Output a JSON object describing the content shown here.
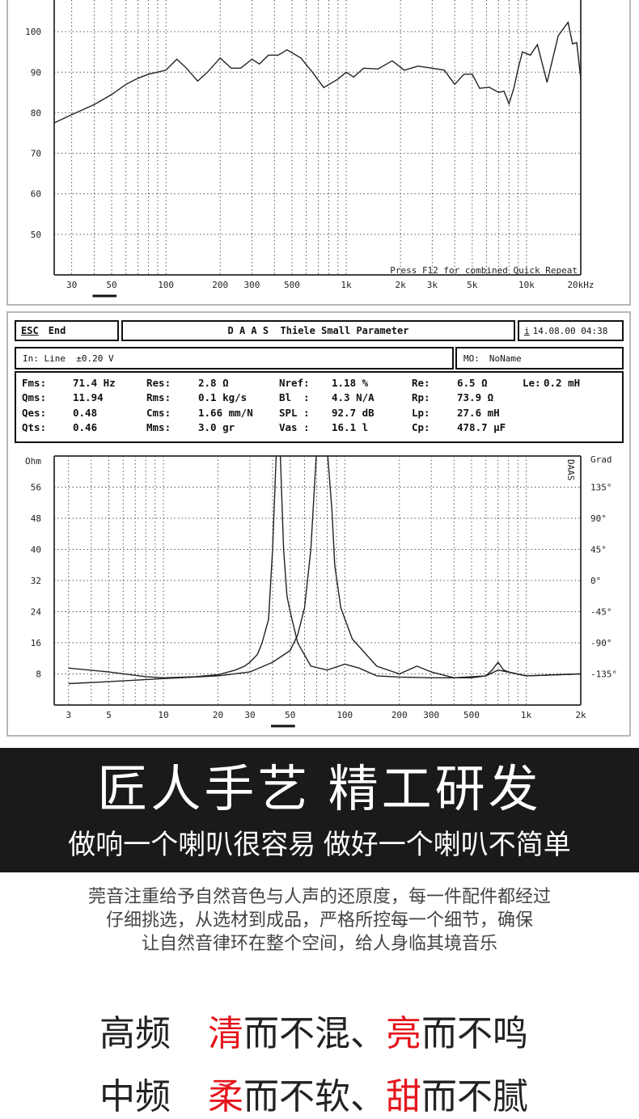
{
  "chart_data": [
    {
      "type": "line",
      "title": "",
      "xlabel": "",
      "ylabel": "",
      "xscale": "log",
      "xlim": [
        24,
        20000
      ],
      "ylim": [
        40,
        109
      ],
      "grid": true,
      "x_ticks": [
        30,
        50,
        100,
        200,
        300,
        500,
        1000,
        2000,
        3000,
        5000,
        10000,
        20000
      ],
      "x_tick_labels": [
        "30",
        "50",
        "100",
        "200",
        "300",
        "500",
        "1k",
        "2k",
        "3k",
        "5k",
        "10k",
        "20kHz"
      ],
      "y_ticks": [
        50,
        60,
        70,
        80,
        90,
        100
      ],
      "y_tick_labels": [
        "50",
        "60",
        "70",
        "80",
        "90",
        "100"
      ],
      "annotation": "Press F12 for combined Quick Repeat",
      "series": [
        {
          "x": [
            24,
            30,
            40,
            50,
            60,
            70,
            80,
            100,
            115,
            130,
            150,
            170,
            200,
            230,
            260,
            300,
            330,
            370,
            420,
            470,
            560,
            650,
            750,
            900,
            1000,
            1100,
            1250,
            1500,
            1800,
            2100,
            2500,
            3000,
            3500,
            4000,
            4500,
            5000,
            5500,
            6200,
            7000,
            7500,
            8000,
            8500,
            9000,
            9500,
            10500,
            11500,
            13000,
            15000,
            17000,
            18000,
            19000,
            20000
          ],
          "y": [
            77.5,
            79.5,
            82,
            84.5,
            87,
            88.5,
            89.5,
            90.5,
            93.2,
            91,
            87.8,
            90,
            93.5,
            91,
            91,
            93.2,
            92,
            94.2,
            94.2,
            95.5,
            93.5,
            90,
            86.2,
            88.3,
            90,
            88.8,
            91,
            90.8,
            92.8,
            90.5,
            91.5,
            91,
            90.5,
            87,
            89.5,
            89.5,
            86,
            86.3,
            85,
            85.3,
            82.2,
            86,
            91,
            95,
            94.2,
            96.8,
            87.5,
            99,
            102.3,
            97,
            97.3,
            88.5
          ]
        }
      ]
    },
    {
      "type": "line",
      "title": "",
      "xscale": "log",
      "xlim": [
        2.5,
        2000
      ],
      "ylim": [
        0,
        64
      ],
      "grid": true,
      "ylabel_left": "Ohm",
      "ylabel_right": "Grad",
      "x_ticks": [
        3,
        5,
        10,
        20,
        30,
        50,
        100,
        200,
        300,
        500,
        1000,
        2000
      ],
      "x_tick_labels": [
        "3",
        "5",
        "10",
        "20",
        "30",
        "50",
        "100",
        "200",
        "300",
        "500",
        "1k",
        "2k"
      ],
      "y_ticks": [
        8,
        16,
        24,
        32,
        40,
        48,
        56
      ],
      "y_tick_labels": [
        "8",
        "16",
        "24",
        "32",
        "40",
        "48",
        "56"
      ],
      "y2_tick_labels": [
        "-135°",
        "-90°",
        "-45°",
        "0°",
        "45°",
        "90°",
        "135°"
      ],
      "watermark": "DAAS",
      "series": [
        {
          "x": [
            3,
            5,
            8,
            10,
            15,
            20,
            25,
            28,
            30,
            33,
            35,
            38,
            40,
            42,
            44,
            46,
            48,
            50,
            55,
            65,
            80,
            100,
            120,
            150,
            200,
            300,
            500,
            600,
            650,
            700,
            750,
            800,
            1000,
            2000
          ],
          "y": [
            9.5,
            8.5,
            7.3,
            7,
            7.3,
            7.8,
            9,
            10,
            11,
            13,
            16,
            22,
            40,
            66,
            66,
            40,
            28,
            24,
            16,
            10,
            9,
            10.5,
            9.5,
            7.5,
            7.2,
            7,
            7,
            7.5,
            9,
            11,
            9,
            8.5,
            7.5,
            8
          ]
        },
        {
          "x": [
            3,
            5,
            10,
            20,
            30,
            40,
            50,
            55,
            60,
            65,
            70,
            80,
            85,
            88,
            95,
            110,
            150,
            200,
            250,
            300,
            400,
            600,
            700,
            1000,
            2000
          ],
          "y": [
            5.5,
            6,
            6.8,
            7.5,
            8.5,
            11,
            14,
            18,
            25,
            40,
            66,
            66,
            50,
            36,
            25,
            17,
            10,
            8,
            10,
            8.5,
            7,
            7.5,
            9,
            7.5,
            8
          ]
        }
      ]
    }
  ],
  "daas": {
    "esc_label": "ESC",
    "end_label": "End",
    "title": "D A A S  Thiele Small Parameter",
    "info_icon": "i",
    "datetime": "14.08.00 04:38",
    "input": "In: Line  ±0.20 V",
    "mo_label": "MO:",
    "mo_value": "NoName",
    "params": [
      {
        "label": "Fms:",
        "value": "71.4 Hz"
      },
      {
        "label": "Res:",
        "value": "2.8 Ω"
      },
      {
        "label": "Nref:",
        "value": "1.18 %"
      },
      {
        "label": "Re:",
        "value": "6.5 Ω"
      },
      {
        "label": "Le:",
        "value": "0.2 mH"
      },
      {
        "label": "Qms:",
        "value": "11.94"
      },
      {
        "label": "Rms:",
        "value": "0.1 kg/s"
      },
      {
        "label": "Bl  :",
        "value": "4.3 N/A"
      },
      {
        "label": "Rp:",
        "value": "73.9 Ω"
      },
      {
        "label": "Qes:",
        "value": "0.48"
      },
      {
        "label": "Cms:",
        "value": "1.66 mm/N"
      },
      {
        "label": "SPL :",
        "value": "92.7 dB"
      },
      {
        "label": "Lp:",
        "value": "27.6 mH"
      },
      {
        "label": "Qts:",
        "value": "0.46"
      },
      {
        "label": "Mms:",
        "value": "3.0 gr"
      },
      {
        "label": "Vas :",
        "value": "16.1 l"
      },
      {
        "label": "Cp:",
        "value": "478.7 µF"
      }
    ]
  },
  "banner": {
    "title": "匠人手艺 精工研发",
    "subtitle": "做响一个喇叭很容易  做好一个喇叭不简单",
    "background": "#1a1a1a"
  },
  "description": [
    "莞音注重给予自然音色与人声的还原度，每一件配件都经过",
    "仔细挑选，从选材到成品，严格所控每一个细节，确保",
    "让自然音律环在整个空间，给人身临其境音乐"
  ],
  "slogans": [
    {
      "label": "高频",
      "a_red": "清",
      "a_rest": "而不混、",
      "b_red": "亮",
      "b_rest": "而不鸣"
    },
    {
      "label": "中频",
      "a_red": "柔",
      "a_rest": "而不软、",
      "b_red": "甜",
      "b_rest": "而不腻"
    }
  ],
  "accent_color": "#e5151d"
}
